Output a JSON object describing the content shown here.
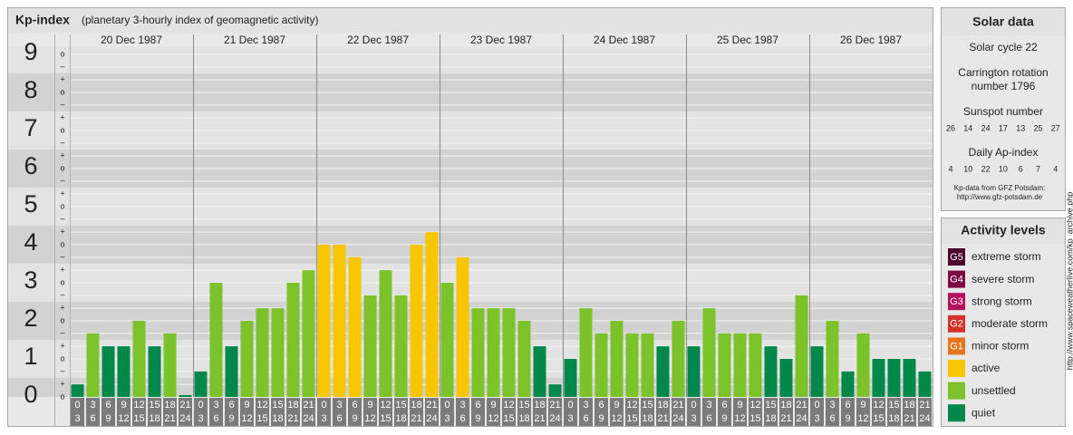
{
  "chart_data": {
    "type": "bar",
    "title": "Kp-index",
    "subtitle": "(planetary 3-hourly index of geomagnetic activity)",
    "days": [
      "20 Dec 1987",
      "21 Dec 1987",
      "22 Dec 1987",
      "23 Dec 1987",
      "24 Dec 1987",
      "25 Dec 1987",
      "26 Dec 1987"
    ],
    "time_slots": [
      {
        "from": 0,
        "to": 3
      },
      {
        "from": 3,
        "to": 6
      },
      {
        "from": 6,
        "to": 9
      },
      {
        "from": 9,
        "to": 12
      },
      {
        "from": 12,
        "to": 15
      },
      {
        "from": 15,
        "to": 18
      },
      {
        "from": 18,
        "to": 21
      },
      {
        "from": 21,
        "to": 24
      }
    ],
    "values": [
      0.33,
      1.67,
      1.33,
      1.33,
      2,
      1.33,
      1.67,
      0,
      0.67,
      3,
      1.33,
      2,
      2.33,
      2.33,
      3,
      3.33,
      4,
      4,
      3.67,
      2.67,
      3.33,
      2.67,
      4,
      4.33,
      3,
      3.67,
      2.33,
      2.33,
      2.33,
      2,
      1.33,
      0.33,
      1,
      2.33,
      1.67,
      2,
      1.67,
      1.67,
      1.33,
      2,
      1.33,
      2.33,
      1.67,
      1.67,
      1.67,
      1.33,
      1,
      2.67,
      1.33,
      2,
      0.67,
      1.67,
      1,
      1,
      1,
      0.67
    ],
    "colors": [
      "#00884a",
      "#7cc22a",
      "#00884a",
      "#00884a",
      "#7cc22a",
      "#00884a",
      "#7cc22a",
      "#00884a",
      "#00884a",
      "#7cc22a",
      "#00884a",
      "#7cc22a",
      "#7cc22a",
      "#7cc22a",
      "#7cc22a",
      "#7cc22a",
      "#f7c600",
      "#f7c600",
      "#f7c600",
      "#7cc22a",
      "#7cc22a",
      "#7cc22a",
      "#f7c600",
      "#f7c600",
      "#7cc22a",
      "#f7c600",
      "#7cc22a",
      "#7cc22a",
      "#7cc22a",
      "#7cc22a",
      "#00884a",
      "#00884a",
      "#00884a",
      "#7cc22a",
      "#7cc22a",
      "#7cc22a",
      "#7cc22a",
      "#7cc22a",
      "#00884a",
      "#7cc22a",
      "#00884a",
      "#7cc22a",
      "#7cc22a",
      "#7cc22a",
      "#7cc22a",
      "#00884a",
      "#00884a",
      "#7cc22a",
      "#00884a",
      "#7cc22a",
      "#00884a",
      "#7cc22a",
      "#00884a",
      "#00884a",
      "#00884a",
      "#00884a"
    ],
    "ylim": [
      0,
      9.2
    ],
    "yticks": [
      0,
      1,
      2,
      3,
      4,
      5,
      6,
      7,
      8,
      9
    ],
    "minor_ticks": [
      {
        "value": 0,
        "label": "o"
      },
      {
        "value": 0.33,
        "label": "+"
      },
      {
        "value": 0.67,
        "label": "–"
      },
      {
        "value": 1,
        "label": "o"
      },
      {
        "value": 1.33,
        "label": "+"
      },
      {
        "value": 1.67,
        "label": "–"
      },
      {
        "value": 2,
        "label": "o"
      },
      {
        "value": 2.33,
        "label": "+"
      },
      {
        "value": 2.67,
        "label": "–"
      },
      {
        "value": 3,
        "label": "o"
      },
      {
        "value": 3.33,
        "label": "+"
      },
      {
        "value": 3.67,
        "label": "–"
      },
      {
        "value": 4,
        "label": "o"
      },
      {
        "value": 4.33,
        "label": "+"
      },
      {
        "value": 4.67,
        "label": "–"
      },
      {
        "value": 5,
        "label": "o"
      },
      {
        "value": 5.33,
        "label": "+"
      },
      {
        "value": 5.67,
        "label": "–"
      },
      {
        "value": 6,
        "label": "o"
      },
      {
        "value": 6.33,
        "label": "+"
      },
      {
        "value": 6.67,
        "label": "–"
      },
      {
        "value": 7,
        "label": "o"
      },
      {
        "value": 7.33,
        "label": "+"
      },
      {
        "value": 7.67,
        "label": "–"
      },
      {
        "value": 8,
        "label": "o"
      },
      {
        "value": 8.33,
        "label": "+"
      },
      {
        "value": 8.67,
        "label": "–"
      },
      {
        "value": 9,
        "label": "o"
      }
    ],
    "grid": true
  },
  "solar_data": {
    "title": "Solar data",
    "solar_cycle": "Solar cycle 22",
    "carrington_line1": "Carrington rotation",
    "carrington_line2": "number 1796",
    "sunspot_title": "Sunspot number",
    "sunspot_numbers": [
      26,
      14,
      24,
      17,
      13,
      25,
      27
    ],
    "ap_title": "Daily Ap-index",
    "ap_values": [
      4,
      10,
      22,
      10,
      6,
      7,
      4
    ],
    "source_line1": "Kp-data from GFZ Potsdam:",
    "source_line2": "http://www.gfz-potsdam.de"
  },
  "activity_levels": {
    "title": "Activity levels",
    "items": [
      {
        "badge": "G5",
        "label": "extreme storm",
        "color": "#4d0029"
      },
      {
        "badge": "G4",
        "label": "severe storm",
        "color": "#7d0a45"
      },
      {
        "badge": "G3",
        "label": "strong storm",
        "color": "#b5125e"
      },
      {
        "badge": "G2",
        "label": "moderate storm",
        "color": "#d6322a"
      },
      {
        "badge": "G1",
        "label": "minor storm",
        "color": "#e8731e"
      },
      {
        "label": "active",
        "color": "#f7c600"
      },
      {
        "label": "unsettled",
        "color": "#7cc22a"
      },
      {
        "label": "quiet",
        "color": "#00884a"
      }
    ]
  },
  "watermark": "http://www.spaceweatherlive.com/kp_archive.php"
}
